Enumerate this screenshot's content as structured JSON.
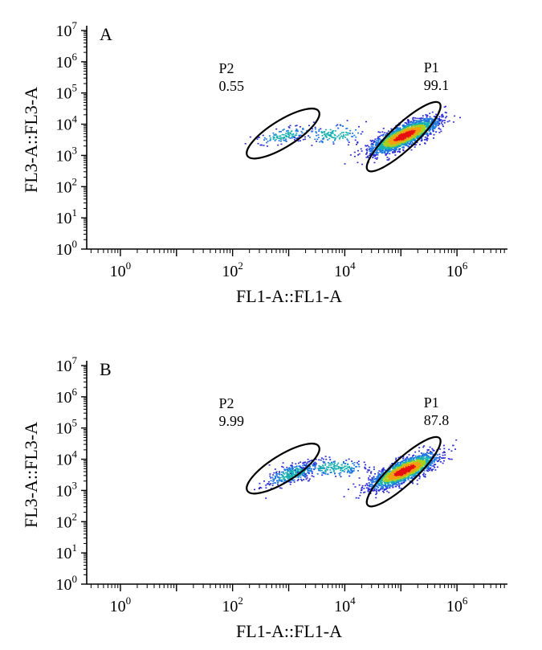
{
  "chart_data": [
    {
      "type": "scatter",
      "panel": "A",
      "xlabel": "FL1-A::FL1-A",
      "ylabel": "FL3-A::FL3-A",
      "x_scale": "log",
      "y_scale": "log",
      "xlim_log10": [
        -0.6,
        6.9
      ],
      "ylim_log10": [
        0,
        7
      ],
      "x_ticks": [
        {
          "exp": 0,
          "label": "10",
          "sup": "0"
        },
        {
          "exp": 2,
          "label": "10",
          "sup": "2"
        },
        {
          "exp": 4,
          "label": "10",
          "sup": "4"
        },
        {
          "exp": 6,
          "label": "10",
          "sup": "6"
        }
      ],
      "y_ticks": [
        {
          "exp": 0,
          "label": "10",
          "sup": "0"
        },
        {
          "exp": 1,
          "label": "10",
          "sup": "1"
        },
        {
          "exp": 2,
          "label": "10",
          "sup": "2"
        },
        {
          "exp": 3,
          "label": "10",
          "sup": "3"
        },
        {
          "exp": 4,
          "label": "10",
          "sup": "4"
        },
        {
          "exp": 5,
          "label": "10",
          "sup": "5"
        },
        {
          "exp": 6,
          "label": "10",
          "sup": "6"
        },
        {
          "exp": 7,
          "label": "10",
          "sup": "7"
        }
      ],
      "gates": [
        {
          "name": "P2",
          "value": "0.55",
          "center_log10": [
            2.9,
            3.7
          ],
          "spread_log10": [
            1.5,
            0.85
          ],
          "angle_deg": 32
        },
        {
          "name": "P1",
          "value": "99.1",
          "center_log10": [
            5.05,
            3.6
          ],
          "spread_log10": [
            1.75,
            0.8
          ],
          "angle_deg": 43
        }
      ],
      "populations": [
        {
          "center_log10": [
            5.05,
            3.65
          ],
          "spread_log10": [
            0.75,
            0.26
          ],
          "angle_deg": 43,
          "weight": 0.9
        },
        {
          "center_log10": [
            2.9,
            3.65
          ],
          "spread_log10": [
            0.55,
            0.22
          ],
          "angle_deg": 25,
          "weight": 0.05
        },
        {
          "center_log10": [
            3.8,
            3.7
          ],
          "spread_log10": [
            0.55,
            0.35
          ],
          "angle_deg": 0,
          "weight": 0.05
        }
      ]
    },
    {
      "type": "scatter",
      "panel": "B",
      "xlabel": "FL1-A::FL1-A",
      "ylabel": "FL3-A::FL3-A",
      "x_scale": "log",
      "y_scale": "log",
      "xlim_log10": [
        -0.6,
        6.9
      ],
      "ylim_log10": [
        0,
        7
      ],
      "x_ticks": [
        {
          "exp": 0,
          "label": "10",
          "sup": "0"
        },
        {
          "exp": 2,
          "label": "10",
          "sup": "2"
        },
        {
          "exp": 4,
          "label": "10",
          "sup": "4"
        },
        {
          "exp": 6,
          "label": "10",
          "sup": "6"
        }
      ],
      "y_ticks": [
        {
          "exp": 0,
          "label": "10",
          "sup": "0"
        },
        {
          "exp": 1,
          "label": "10",
          "sup": "1"
        },
        {
          "exp": 2,
          "label": "10",
          "sup": "2"
        },
        {
          "exp": 3,
          "label": "10",
          "sup": "3"
        },
        {
          "exp": 4,
          "label": "10",
          "sup": "4"
        },
        {
          "exp": 5,
          "label": "10",
          "sup": "5"
        },
        {
          "exp": 6,
          "label": "10",
          "sup": "6"
        },
        {
          "exp": 7,
          "label": "10",
          "sup": "7"
        }
      ],
      "gates": [
        {
          "name": "P2",
          "value": "9.99",
          "center_log10": [
            2.9,
            3.7
          ],
          "spread_log10": [
            1.5,
            0.85
          ],
          "angle_deg": 32
        },
        {
          "name": "P1",
          "value": "87.8",
          "center_log10": [
            5.05,
            3.6
          ],
          "spread_log10": [
            1.75,
            0.8
          ],
          "angle_deg": 43
        }
      ],
      "populations": [
        {
          "center_log10": [
            5.05,
            3.65
          ],
          "spread_log10": [
            0.75,
            0.26
          ],
          "angle_deg": 43,
          "weight": 0.78
        },
        {
          "center_log10": [
            3.05,
            3.55
          ],
          "spread_log10": [
            0.55,
            0.24
          ],
          "angle_deg": 38,
          "weight": 0.14
        },
        {
          "center_log10": [
            3.8,
            3.75
          ],
          "spread_log10": [
            0.6,
            0.3
          ],
          "angle_deg": 0,
          "weight": 0.08
        }
      ]
    }
  ],
  "colors": {
    "axis": "#000000",
    "gate": "#000000",
    "density_low": "#2a2ad6",
    "density_mid": "#18b0b0",
    "density_high": "#e61010"
  }
}
